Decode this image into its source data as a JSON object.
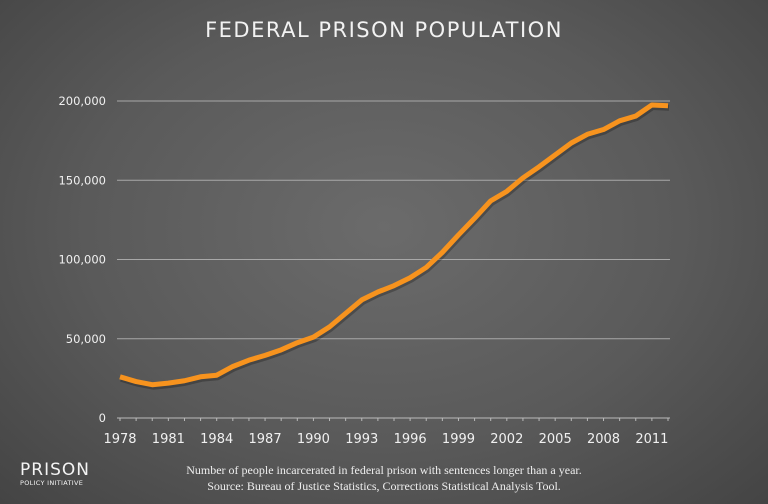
{
  "chart_data": {
    "type": "line",
    "title": "FEDERAL PRISON POPULATION",
    "xlabel": "",
    "ylabel": "",
    "x": [
      1978,
      1979,
      1980,
      1981,
      1982,
      1983,
      1984,
      1985,
      1986,
      1987,
      1988,
      1989,
      1990,
      1991,
      1992,
      1993,
      1994,
      1995,
      1996,
      1997,
      1998,
      1999,
      2000,
      2001,
      2002,
      2003,
      2004,
      2005,
      2006,
      2007,
      2008,
      2009,
      2010,
      2011,
      2012
    ],
    "values": [
      26000,
      23000,
      21000,
      22000,
      23500,
      26000,
      27000,
      32500,
      36500,
      39500,
      43000,
      47500,
      51000,
      57500,
      66000,
      74500,
      79500,
      83500,
      88500,
      95000,
      104500,
      115500,
      126000,
      137000,
      143000,
      151500,
      158500,
      166000,
      173500,
      179000,
      182000,
      187500,
      190500,
      197500,
      197000
    ],
    "ylim": [
      0,
      200000
    ],
    "xlim": [
      1978,
      2012
    ],
    "y_ticks": [
      "0",
      "50,000",
      "100,000",
      "150,000",
      "200,000"
    ],
    "x_ticks": [
      "1978",
      "1981",
      "1984",
      "1987",
      "1990",
      "1993",
      "1996",
      "1999",
      "2002",
      "2005",
      "2008",
      "2011"
    ],
    "grid": true,
    "line_color": "#f7931e"
  },
  "caption": {
    "line1": "Number of people incarcerated in federal prison with sentences longer than a year.",
    "line2": "Source: Bureau of Justice Statistics, Corrections Statistical Analysis Tool."
  },
  "logo": {
    "line1": "PRISON",
    "line2": "POLICY INITIATIVE"
  }
}
